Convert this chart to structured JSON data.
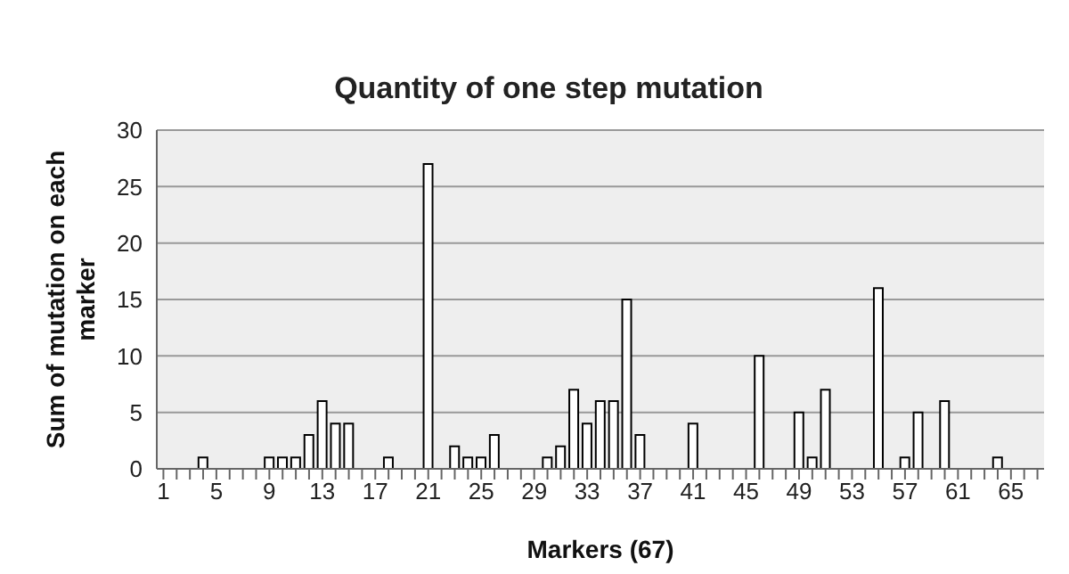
{
  "chart_data": {
    "type": "bar",
    "title": "Quantity of one step mutation",
    "xlabel": "Markers (67)",
    "ylabel": "Sum of mutation on each marker",
    "categories": [
      "1",
      null,
      null,
      null,
      "5",
      null,
      null,
      null,
      "9",
      null,
      null,
      null,
      "13",
      null,
      null,
      null,
      "17",
      null,
      null,
      null,
      "21",
      null,
      null,
      null,
      "25",
      null,
      null,
      null,
      "29",
      null,
      null,
      null,
      "33",
      null,
      null,
      null,
      "37",
      null,
      null,
      null,
      "41",
      null,
      null,
      null,
      "45",
      null,
      null,
      null,
      "49",
      null,
      null,
      null,
      "53",
      null,
      null,
      null,
      "57",
      null,
      null,
      null,
      "61",
      null,
      null,
      null,
      "65",
      null,
      null
    ],
    "values": [
      0,
      0,
      0,
      1,
      0,
      0,
      0,
      0,
      1,
      1,
      1,
      3,
      6,
      4,
      4,
      0,
      0,
      1,
      0,
      0,
      27,
      0,
      2,
      1,
      1,
      3,
      0,
      0,
      0,
      1,
      2,
      7,
      4,
      6,
      6,
      15,
      3,
      0,
      0,
      0,
      4,
      0,
      0,
      0,
      0,
      10,
      0,
      0,
      5,
      1,
      7,
      0,
      0,
      0,
      16,
      0,
      1,
      5,
      0,
      6,
      0,
      0,
      0,
      1,
      0,
      0,
      0
    ],
    "color": "#ffffff",
    "ylim": [
      0,
      30
    ],
    "yticks": [
      0,
      5,
      10,
      15,
      20,
      25,
      30
    ],
    "grid": "y",
    "legend": false
  }
}
